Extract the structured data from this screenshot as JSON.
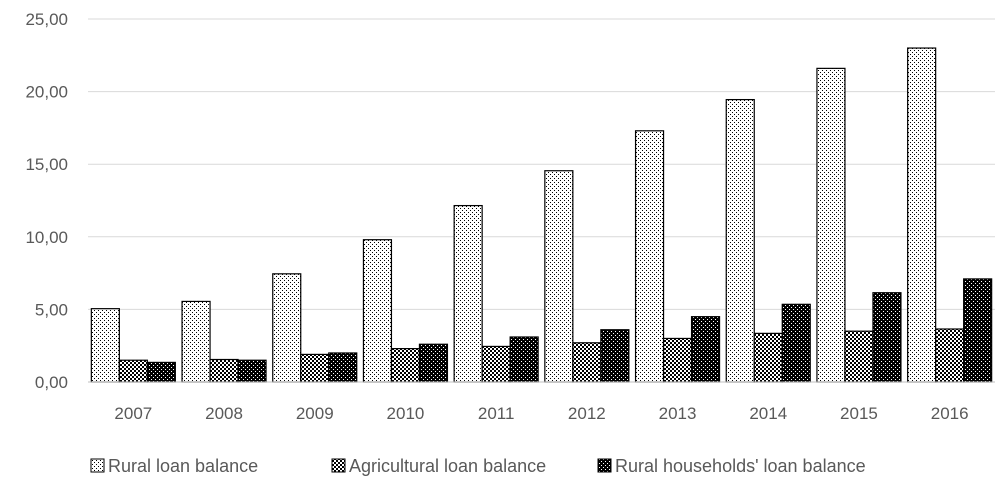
{
  "chart_data": {
    "type": "bar",
    "title": "",
    "xlabel": "",
    "ylabel": "",
    "categories": [
      "2007",
      "2008",
      "2009",
      "2010",
      "2011",
      "2012",
      "2013",
      "2014",
      "2015",
      "2016"
    ],
    "series": [
      {
        "name": "Rural loan balance",
        "values": [
          5.05,
          5.55,
          7.45,
          9.8,
          12.15,
          14.55,
          17.3,
          19.45,
          21.6,
          23.0
        ],
        "pattern": "dots"
      },
      {
        "name": "Agricultural loan balance",
        "values": [
          1.5,
          1.55,
          1.9,
          2.3,
          2.45,
          2.7,
          3.0,
          3.35,
          3.5,
          3.65
        ],
        "pattern": "checker"
      },
      {
        "name": "Rural households' loan balance",
        "values": [
          1.35,
          1.5,
          2.0,
          2.6,
          3.1,
          3.6,
          4.5,
          5.35,
          6.15,
          7.1
        ],
        "pattern": "dense-checker"
      }
    ],
    "ylim": [
      0,
      25
    ],
    "yticks": [
      "0,00",
      "5,00",
      "10,00",
      "15,00",
      "20,00",
      "25,00"
    ],
    "grid": true,
    "legend_position": "bottom",
    "colors": {
      "bar_stroke": "#000000",
      "grid": "#d9d9d9",
      "text": "#595959"
    }
  }
}
